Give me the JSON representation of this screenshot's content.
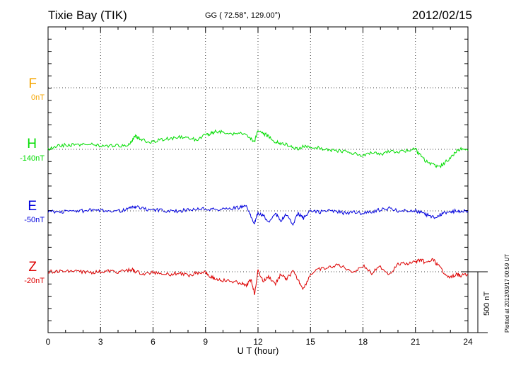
{
  "header": {
    "station": "Tixie Bay (TIK)",
    "coords": "GG ( 72.58°, 129.00°)",
    "date": "2012/02/15"
  },
  "components": [
    {
      "letter": "F",
      "offset": "0nT",
      "color": "#f5a500"
    },
    {
      "letter": "H",
      "offset": "-140nT",
      "color": "#00dd00"
    },
    {
      "letter": "E",
      "offset": "-50nT",
      "color": "#0000dd"
    },
    {
      "letter": "Z",
      "offset": "-20nT",
      "color": "#dd0000"
    }
  ],
  "footer": {
    "plotted_note": "Plotted at 2012/03/17 00:59 UT",
    "scale_label": "500 nT"
  },
  "chart_data": {
    "type": "line",
    "xlabel": "U T (hour)",
    "xlim": [
      0,
      24
    ],
    "xticks": [
      0,
      3,
      6,
      9,
      12,
      15,
      18,
      21,
      24
    ],
    "grid": true,
    "series": [
      {
        "name": "H",
        "color": "#00dd00",
        "baseline_nT": -140,
        "x": [
          0,
          0.5,
          1,
          1.5,
          2,
          2.5,
          3,
          3.5,
          4,
          4.5,
          4.8,
          5,
          5.2,
          5.5,
          6,
          6.5,
          7,
          7.5,
          8,
          8.5,
          9,
          9.3,
          9.6,
          10,
          10.5,
          11,
          11.5,
          11.8,
          12,
          12.3,
          12.6,
          13,
          13.3,
          13.6,
          14,
          14.3,
          14.6,
          15,
          15.5,
          16,
          16.5,
          17,
          17.5,
          18,
          18.5,
          19,
          19.5,
          20,
          20.5,
          21,
          21.3,
          21.6,
          22,
          22.3,
          22.6,
          23,
          23.3,
          23.6,
          24
        ],
        "y": [
          0,
          30,
          35,
          35,
          40,
          40,
          30,
          25,
          30,
          35,
          70,
          110,
          90,
          70,
          60,
          80,
          90,
          100,
          90,
          80,
          120,
          130,
          150,
          140,
          120,
          130,
          100,
          60,
          160,
          130,
          110,
          60,
          50,
          40,
          20,
          0,
          30,
          10,
          10,
          0,
          -10,
          -20,
          -30,
          -50,
          -30,
          -40,
          -20,
          -20,
          -10,
          0,
          -50,
          -100,
          -120,
          -150,
          -120,
          -70,
          -20,
          0,
          -10
        ]
      },
      {
        "name": "E",
        "color": "#0000dd",
        "baseline_nT": -50,
        "x": [
          0,
          0.5,
          1,
          1.5,
          2,
          2.5,
          3,
          3.5,
          4,
          4.5,
          4.8,
          5,
          5.5,
          6,
          6.5,
          7,
          7.5,
          8,
          8.5,
          9,
          9.5,
          10,
          10.5,
          11,
          11.3,
          11.6,
          11.8,
          12,
          12.3,
          12.6,
          13,
          13.3,
          13.6,
          14,
          14.3,
          14.6,
          15,
          15.5,
          16,
          16.5,
          17,
          17.5,
          18,
          18.5,
          19,
          19.5,
          20,
          20.5,
          21,
          21.3,
          21.6,
          22,
          22.3,
          22.6,
          23,
          23.3,
          23.6,
          24
        ],
        "y": [
          0,
          -10,
          -5,
          0,
          0,
          5,
          0,
          5,
          0,
          10,
          30,
          35,
          15,
          10,
          5,
          -5,
          0,
          10,
          15,
          20,
          10,
          15,
          20,
          30,
          40,
          -40,
          -100,
          -20,
          -40,
          -90,
          -20,
          -80,
          -30,
          -110,
          -20,
          -60,
          0,
          -10,
          0,
          -5,
          -20,
          -10,
          -20,
          -5,
          10,
          20,
          0,
          5,
          0,
          -10,
          -30,
          -50,
          -40,
          -20,
          -10,
          0,
          0,
          0
        ]
      },
      {
        "name": "Z",
        "color": "#dd0000",
        "baseline_nT": -20,
        "x": [
          0,
          0.5,
          1,
          1.5,
          2,
          2.5,
          3,
          3.5,
          4,
          4.5,
          4.8,
          5,
          5.5,
          6,
          6.5,
          7,
          7.5,
          8,
          8.5,
          9,
          9.3,
          9.6,
          10,
          10.5,
          11,
          11.3,
          11.6,
          11.8,
          12,
          12.3,
          12.6,
          13,
          13.3,
          13.6,
          14,
          14.3,
          14.6,
          15,
          15.5,
          16,
          16.5,
          17,
          17.5,
          18,
          18.5,
          19,
          19.5,
          20,
          20.5,
          21,
          21.3,
          21.6,
          22,
          22.3,
          22.6,
          23,
          23.3,
          23.6,
          24
        ],
        "y": [
          0,
          5,
          0,
          5,
          0,
          -5,
          0,
          5,
          0,
          10,
          20,
          0,
          -20,
          -5,
          -10,
          -20,
          -10,
          -30,
          -10,
          0,
          -40,
          -60,
          -70,
          -80,
          -90,
          -120,
          -60,
          -180,
          10,
          -80,
          -40,
          -100,
          -20,
          -60,
          0,
          -70,
          -140,
          -20,
          20,
          30,
          60,
          30,
          0,
          50,
          -10,
          40,
          -20,
          60,
          70,
          80,
          100,
          70,
          100,
          50,
          0,
          -50,
          -20,
          -30,
          -20
        ]
      }
    ],
    "annotation": "500 nT"
  }
}
